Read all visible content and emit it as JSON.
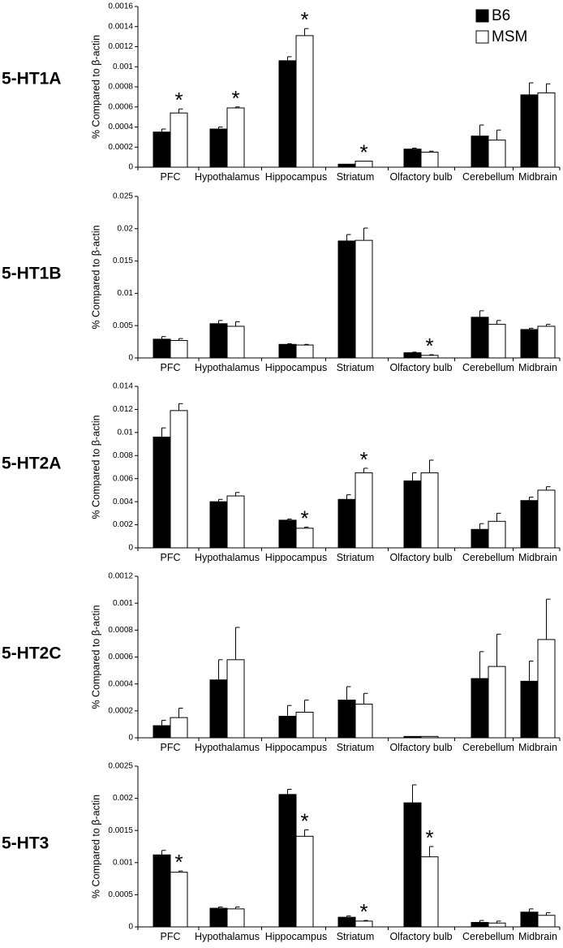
{
  "chart_data": {
    "type": "bar",
    "categories": [
      "PFC",
      "Hypothalamus",
      "Hippocampus",
      "Striatum",
      "Olfactory bulb",
      "Cerebellum",
      "Midbrain"
    ],
    "ylabel": "% Compared to β-actin",
    "legend": {
      "placement": "top-right",
      "entries": [
        {
          "name": "B6",
          "color": "#000000"
        },
        {
          "name": "MSM",
          "color": "#ffffff"
        }
      ]
    },
    "panels": [
      {
        "label": "5-HT1A",
        "ylim": [
          0,
          0.0016
        ],
        "yticks": [
          "0",
          "0.0002",
          "0.0004",
          "0.0006",
          "0.0008",
          "0.001",
          "0.0012",
          "0.0014",
          "0.0016"
        ],
        "series": [
          {
            "name": "B6",
            "values": [
              0.00035,
              0.00038,
              0.00106,
              3e-05,
              0.00018,
              0.00031,
              0.00072
            ],
            "errors": [
              3e-05,
              2e-05,
              4e-05,
              0.0,
              1e-05,
              0.00011,
              0.00012
            ]
          },
          {
            "name": "MSM",
            "values": [
              0.00054,
              0.00059,
              0.00131,
              6e-05,
              0.00015,
              0.00027,
              0.00074
            ],
            "errors": [
              4e-05,
              1e-05,
              7e-05,
              0.0,
              1e-05,
              0.0001,
              9e-05
            ]
          }
        ],
        "significant": [
          0,
          1,
          2,
          3
        ]
      },
      {
        "label": "5-HT1B",
        "ylim": [
          0,
          0.025
        ],
        "yticks": [
          "0",
          "0.005",
          "0.01",
          "0.015",
          "0.02",
          "0.025"
        ],
        "series": [
          {
            "name": "B6",
            "values": [
              0.0029,
              0.0053,
              0.0021,
              0.0181,
              0.0008,
              0.0063,
              0.0044
            ],
            "errors": [
              0.0004,
              0.0005,
              0.0001,
              0.001,
              0.0001,
              0.001,
              0.0002
            ]
          },
          {
            "name": "MSM",
            "values": [
              0.0027,
              0.0049,
              0.002,
              0.0182,
              0.0004,
              0.0052,
              0.0049
            ],
            "errors": [
              0.0003,
              0.0007,
              0.0001,
              0.0019,
              0.0001,
              0.0006,
              0.0003
            ]
          }
        ],
        "significant": [
          4
        ]
      },
      {
        "label": "5-HT2A",
        "ylim": [
          0,
          0.014
        ],
        "yticks": [
          "0",
          "0.002",
          "0.004",
          "0.006",
          "0.008",
          "0.01",
          "0.012",
          "0.014"
        ],
        "series": [
          {
            "name": "B6",
            "values": [
              0.0096,
              0.004,
              0.0024,
              0.0042,
              0.0058,
              0.0016,
              0.0041
            ],
            "errors": [
              0.0008,
              0.0002,
              0.0001,
              0.0004,
              0.0007,
              0.0005,
              0.0003
            ]
          },
          {
            "name": "MSM",
            "values": [
              0.0119,
              0.0045,
              0.0017,
              0.0065,
              0.0065,
              0.0023,
              0.005
            ],
            "errors": [
              0.0006,
              0.0003,
              0.0001,
              0.0004,
              0.0011,
              0.0007,
              0.0003
            ]
          }
        ],
        "significant": [
          2,
          3
        ]
      },
      {
        "label": "5-HT2C",
        "ylim": [
          0,
          0.0012
        ],
        "yticks": [
          "0",
          "0.0002",
          "0.0004",
          "0.0006",
          "0.0008",
          "0.001",
          "0.0012"
        ],
        "series": [
          {
            "name": "B6",
            "values": [
              9e-05,
              0.00043,
              0.00016,
              0.00028,
              1e-05,
              0.00044,
              0.00042
            ],
            "errors": [
              4e-05,
              0.00015,
              8e-05,
              0.0001,
              0.0,
              0.0002,
              0.00015
            ]
          },
          {
            "name": "MSM",
            "values": [
              0.00015,
              0.00058,
              0.00019,
              0.00025,
              1e-05,
              0.00053,
              0.00073
            ],
            "errors": [
              7e-05,
              0.00024,
              9e-05,
              8e-05,
              0.0,
              0.00024,
              0.0003
            ]
          }
        ],
        "significant": []
      },
      {
        "label": "5-HT3",
        "ylim": [
          0,
          0.0025
        ],
        "yticks": [
          "0",
          "0.0005",
          "0.001",
          "0.0015",
          "0.002",
          "0.0025"
        ],
        "series": [
          {
            "name": "B6",
            "values": [
              0.00112,
              0.00029,
              0.00206,
              0.00015,
              0.00193,
              7e-05,
              0.00023
            ],
            "errors": [
              7e-05,
              2e-05,
              8e-05,
              2e-05,
              0.00028,
              3e-05,
              5e-05
            ]
          },
          {
            "name": "MSM",
            "values": [
              0.00085,
              0.00028,
              0.00141,
              9e-05,
              0.00109,
              6e-05,
              0.00018
            ],
            "errors": [
              2e-05,
              3e-05,
              0.0001,
              1e-05,
              0.00016,
              3e-05,
              4e-05
            ]
          }
        ],
        "significant": [
          0,
          2,
          3,
          4
        ]
      }
    ]
  }
}
